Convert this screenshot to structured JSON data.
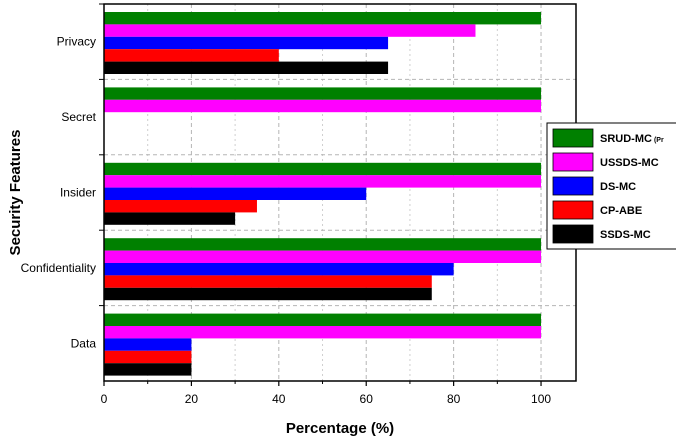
{
  "chart_data": {
    "type": "bar",
    "orientation": "horizontal",
    "xlabel": "Percentage (%)",
    "ylabel": "Security Features",
    "xlim": [
      0,
      108
    ],
    "x_ticks": [
      "0",
      "20",
      "40",
      "60",
      "80",
      "100"
    ],
    "grid": true,
    "legend_position": "right",
    "categories": [
      "Privacy",
      "Secret",
      "Insider",
      "Confidentiality",
      "Data"
    ],
    "series": [
      {
        "name": "SRUD-MC",
        "name_suffix": "(Pr",
        "color": "#008000",
        "values": [
          100,
          100,
          100,
          100,
          100
        ]
      },
      {
        "name": "USSDS-MC",
        "color": "#ff00ff",
        "values": [
          85,
          100,
          100,
          100,
          100
        ]
      },
      {
        "name": "DS-MC",
        "color": "#0000ff",
        "values": [
          65,
          0,
          60,
          80,
          20
        ]
      },
      {
        "name": "CP-ABE",
        "color": "#ff0000",
        "values": [
          40,
          0,
          35,
          75,
          20
        ]
      },
      {
        "name": "SSDS-MC",
        "color": "#000000",
        "values": [
          65,
          0,
          30,
          75,
          20
        ]
      }
    ]
  }
}
